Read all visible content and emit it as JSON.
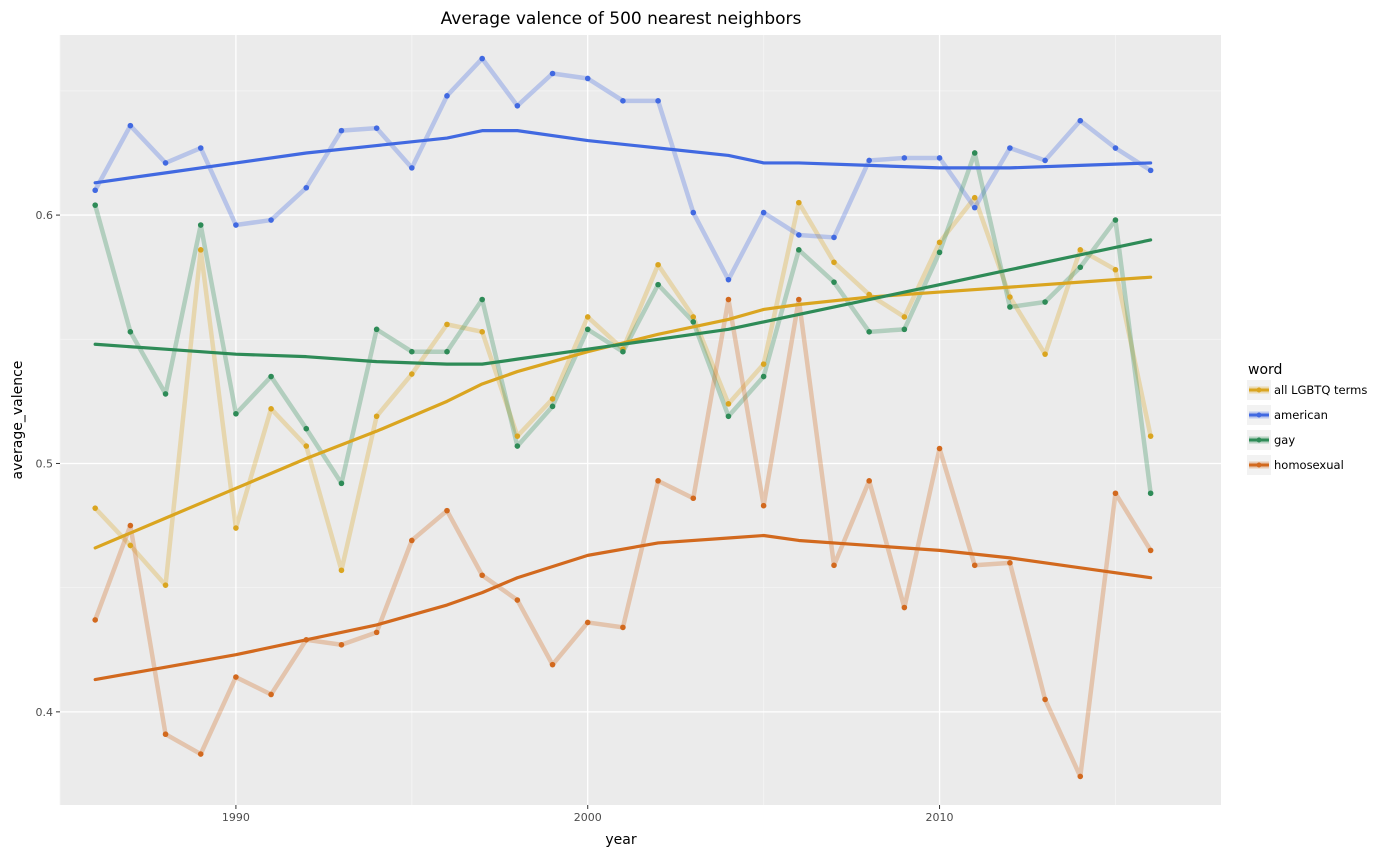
{
  "chart_data": {
    "type": "line",
    "title": "Average valence of 500 nearest neighbors",
    "xlabel": "year",
    "ylabel": "average_valence",
    "xlim": [
      1985,
      2018
    ],
    "ylim": [
      0.3625,
      0.6725
    ],
    "x_ticks": [
      1990,
      2000,
      2010
    ],
    "x_tick_labels": [
      "1990",
      "2000",
      "2010"
    ],
    "y_ticks": [
      0.4,
      0.5,
      0.6
    ],
    "y_tick_labels": [
      "0.4",
      "0.5",
      "0.6"
    ],
    "grid": true,
    "legend_title": "word",
    "legend_position": "right",
    "x": [
      1986,
      1987,
      1988,
      1989,
      1990,
      1991,
      1992,
      1993,
      1994,
      1995,
      1996,
      1997,
      1998,
      1999,
      2000,
      2001,
      2002,
      2003,
      2004,
      2005,
      2006,
      2007,
      2008,
      2009,
      2010,
      2011,
      2012,
      2013,
      2014,
      2015,
      2016
    ],
    "smooth_x": [
      1986,
      1988,
      1990,
      1992,
      1994,
      1996,
      1997,
      1998,
      2000,
      2002,
      2004,
      2005,
      2006,
      2008,
      2010,
      2012,
      2014,
      2016
    ],
    "series": [
      {
        "name": "all LGBTQ terms",
        "color": "#DAA520",
        "values": [
          0.482,
          0.467,
          0.451,
          0.586,
          0.474,
          0.522,
          0.507,
          0.457,
          0.519,
          0.536,
          0.556,
          0.553,
          0.511,
          0.526,
          0.559,
          0.546,
          0.58,
          0.559,
          0.524,
          0.54,
          0.605,
          0.581,
          0.568,
          0.559,
          0.589,
          0.607,
          0.567,
          0.544,
          0.586,
          0.578,
          0.511
        ],
        "smooth": [
          0.466,
          0.478,
          0.49,
          0.502,
          0.513,
          0.525,
          0.532,
          0.537,
          0.545,
          0.552,
          0.558,
          0.562,
          0.564,
          0.567,
          0.569,
          0.571,
          0.573,
          0.575
        ]
      },
      {
        "name": "american",
        "color": "#4169E1",
        "values": [
          0.61,
          0.636,
          0.621,
          0.627,
          0.596,
          0.598,
          0.611,
          0.634,
          0.635,
          0.619,
          0.648,
          0.663,
          0.644,
          0.657,
          0.655,
          0.646,
          0.646,
          0.601,
          0.574,
          0.601,
          0.592,
          0.591,
          0.622,
          0.623,
          0.623,
          0.603,
          0.627,
          0.622,
          0.638,
          0.627,
          0.618
        ],
        "smooth": [
          0.613,
          0.617,
          0.621,
          0.625,
          0.628,
          0.631,
          0.634,
          0.634,
          0.63,
          0.627,
          0.624,
          0.621,
          0.621,
          0.62,
          0.619,
          0.619,
          0.62,
          0.621
        ]
      },
      {
        "name": "gay",
        "color": "#2E8B57",
        "values": [
          0.604,
          0.553,
          0.528,
          0.596,
          0.52,
          0.535,
          0.514,
          0.492,
          0.554,
          0.545,
          0.545,
          0.566,
          0.507,
          0.523,
          0.554,
          0.545,
          0.572,
          0.557,
          0.519,
          0.535,
          0.586,
          0.573,
          0.553,
          0.554,
          0.585,
          0.625,
          0.563,
          0.565,
          0.579,
          0.598,
          0.488
        ],
        "smooth": [
          0.548,
          0.546,
          0.544,
          0.543,
          0.541,
          0.54,
          0.54,
          0.542,
          0.546,
          0.55,
          0.554,
          0.557,
          0.56,
          0.566,
          0.572,
          0.578,
          0.584,
          0.59
        ]
      },
      {
        "name": "homosexual",
        "color": "#D2691E",
        "values": [
          0.437,
          0.475,
          0.391,
          0.383,
          0.414,
          0.407,
          0.429,
          0.427,
          0.432,
          0.469,
          0.481,
          0.455,
          0.445,
          0.419,
          0.436,
          0.434,
          0.493,
          0.486,
          0.566,
          0.483,
          0.566,
          0.459,
          0.493,
          0.442,
          0.506,
          0.459,
          0.46,
          0.405,
          0.374,
          0.488,
          0.465
        ],
        "smooth": [
          0.413,
          0.418,
          0.423,
          0.429,
          0.435,
          0.443,
          0.448,
          0.454,
          0.463,
          0.468,
          0.47,
          0.471,
          0.469,
          0.467,
          0.465,
          0.462,
          0.458,
          0.454
        ]
      }
    ]
  }
}
